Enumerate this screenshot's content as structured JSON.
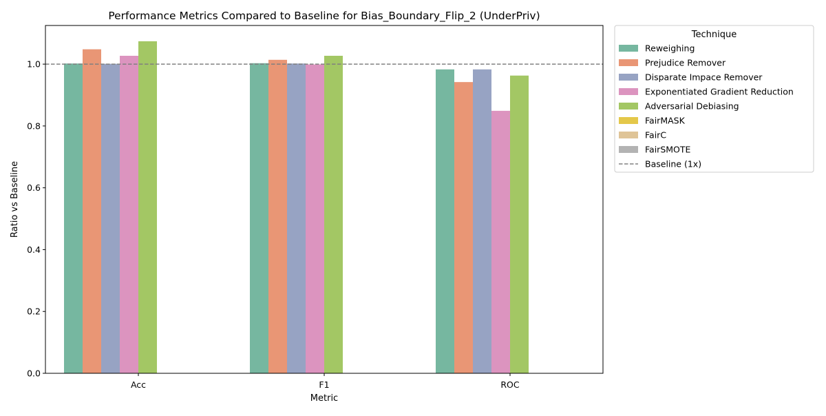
{
  "chart_data": {
    "type": "bar",
    "title": "Performance Metrics Compared to Baseline for Bias_Boundary_Flip_2 (UnderPriv)",
    "xlabel": "Metric",
    "ylabel": "Ratio vs Baseline",
    "categories": [
      "Acc",
      "F1",
      "ROC"
    ],
    "ylim": [
      0,
      1.125
    ],
    "yticks": [
      "0.0",
      "0.2",
      "0.4",
      "0.6",
      "0.8",
      "1.0"
    ],
    "series": [
      {
        "name": "Reweighing",
        "color": "#76b7a0",
        "values": [
          1.002,
          1.003,
          0.983
        ]
      },
      {
        "name": "Prejudice Remover",
        "color": "#e99675",
        "values": [
          1.048,
          1.014,
          0.942
        ]
      },
      {
        "name": "Disparate Impace Remover",
        "color": "#97a3c3",
        "values": [
          1.001,
          1.002,
          0.983
        ]
      },
      {
        "name": "Exponentiated Gradient Reduction",
        "color": "#dc94bf",
        "values": [
          1.027,
          0.999,
          0.849
        ]
      },
      {
        "name": "Adversarial Debiasing",
        "color": "#a3c764",
        "values": [
          1.074,
          1.027,
          0.963
        ]
      },
      {
        "name": "FairMASK",
        "color": "#e4c84a",
        "values": [
          0,
          0,
          0
        ]
      },
      {
        "name": "FairC",
        "color": "#dfc497",
        "values": [
          0,
          0,
          0
        ]
      },
      {
        "name": "FairSMOTE",
        "color": "#b3b3b3",
        "values": [
          0,
          0,
          0
        ]
      }
    ],
    "baseline": {
      "value": 1.0,
      "label": "Baseline (1x)",
      "style": "dashed",
      "color": "#808080"
    },
    "legend": {
      "title": "Technique",
      "placement": "outside-right"
    },
    "grid": false
  }
}
